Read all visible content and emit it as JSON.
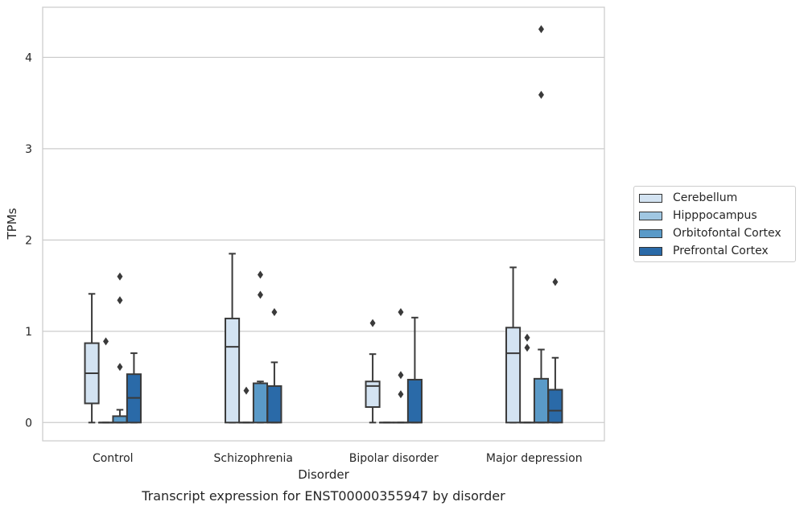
{
  "chart_data": {
    "type": "box",
    "title": "Transcript expression for ENST00000355947 by disorder",
    "xlabel": "Disorder",
    "ylabel": "TPMs",
    "ylim": [
      -0.2,
      4.55
    ],
    "yticks": [
      0,
      1,
      2,
      3,
      4
    ],
    "grid": "horizontal",
    "legend_position": "right",
    "categories": [
      "Control",
      "Schizophrenia",
      "Bipolar disorder",
      "Major depression"
    ],
    "series": [
      {
        "name": "Cerebellum",
        "color": "#d3e3f2",
        "boxes": [
          {
            "whislo": 0.0,
            "q1": 0.21,
            "med": 0.54,
            "q3": 0.87,
            "whishi": 1.41,
            "fliers": []
          },
          {
            "whislo": 0.0,
            "q1": 0.0,
            "med": 0.83,
            "q3": 1.14,
            "whishi": 1.85,
            "fliers": []
          },
          {
            "whislo": 0.0,
            "q1": 0.17,
            "med": 0.4,
            "q3": 0.45,
            "whishi": 0.75,
            "fliers": [
              1.09
            ]
          },
          {
            "whislo": 0.0,
            "q1": 0.0,
            "med": 0.76,
            "q3": 1.04,
            "whishi": 1.7,
            "fliers": []
          }
        ]
      },
      {
        "name": "Hipppocampus",
        "color": "#a0c7e2",
        "boxes": [
          {
            "whislo": 0.0,
            "q1": 0.0,
            "med": 0.0,
            "q3": 0.0,
            "whishi": 0.0,
            "fliers": [
              0.89
            ]
          },
          {
            "whislo": 0.0,
            "q1": 0.0,
            "med": 0.0,
            "q3": 0.0,
            "whishi": 0.0,
            "fliers": [
              0.35
            ]
          },
          {
            "whislo": 0.0,
            "q1": 0.0,
            "med": 0.0,
            "q3": 0.0,
            "whishi": 0.0,
            "fliers": []
          },
          {
            "whislo": 0.0,
            "q1": 0.0,
            "med": 0.0,
            "q3": 0.0,
            "whishi": 0.0,
            "fliers": [
              0.82,
              0.93
            ]
          }
        ]
      },
      {
        "name": "Orbitofontal Cortex",
        "color": "#5a9ac8",
        "boxes": [
          {
            "whislo": 0.0,
            "q1": 0.0,
            "med": 0.0,
            "q3": 0.07,
            "whishi": 0.14,
            "fliers": [
              0.61,
              1.34,
              1.6
            ]
          },
          {
            "whislo": 0.0,
            "q1": 0.0,
            "med": 0.43,
            "q3": 0.43,
            "whishi": 0.45,
            "fliers": [
              1.4,
              1.62
            ]
          },
          {
            "whislo": 0.0,
            "q1": 0.0,
            "med": 0.0,
            "q3": 0.0,
            "whishi": 0.0,
            "fliers": [
              0.31,
              0.52,
              1.21
            ]
          },
          {
            "whislo": 0.0,
            "q1": 0.0,
            "med": 0.0,
            "q3": 0.48,
            "whishi": 0.8,
            "fliers": [
              3.59,
              4.31
            ]
          }
        ]
      },
      {
        "name": "Prefrontal Cortex",
        "color": "#2a6aa8",
        "boxes": [
          {
            "whislo": 0.0,
            "q1": 0.0,
            "med": 0.27,
            "q3": 0.53,
            "whishi": 0.76,
            "fliers": []
          },
          {
            "whislo": 0.0,
            "q1": 0.0,
            "med": 0.0,
            "q3": 0.4,
            "whishi": 0.66,
            "fliers": [
              1.21
            ]
          },
          {
            "whislo": 0.0,
            "q1": 0.0,
            "med": 0.0,
            "q3": 0.47,
            "whishi": 1.15,
            "fliers": []
          },
          {
            "whislo": 0.0,
            "q1": 0.0,
            "med": 0.13,
            "q3": 0.36,
            "whishi": 0.71,
            "fliers": [
              1.54
            ]
          }
        ]
      }
    ]
  }
}
